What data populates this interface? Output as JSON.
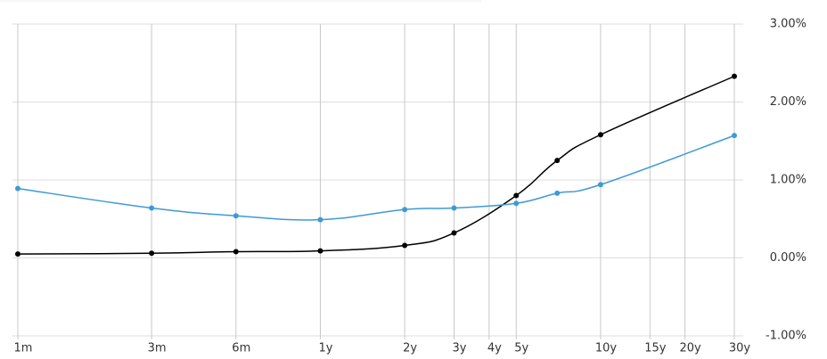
{
  "chart_data": {
    "type": "line",
    "xscale": "log",
    "x": [
      0.0833,
      0.25,
      0.5,
      1,
      2,
      3,
      5,
      7,
      10,
      30
    ],
    "series": [
      {
        "color": "#000000",
        "values": [
          0.05,
          0.06,
          0.08,
          0.09,
          0.16,
          0.32,
          0.8,
          1.25,
          1.58,
          2.33
        ]
      },
      {
        "color": "#3d9ad6",
        "values": [
          0.89,
          0.64,
          0.54,
          0.49,
          0.62,
          0.64,
          0.7,
          0.83,
          0.94,
          1.57
        ]
      }
    ],
    "xlim": [
      0.0833,
      30
    ],
    "xticks": [
      {
        "value": 0.0833,
        "label": "1m"
      },
      {
        "value": 0.25,
        "label": "3m"
      },
      {
        "value": 0.5,
        "label": "6m"
      },
      {
        "value": 1,
        "label": "1y"
      },
      {
        "value": 2,
        "label": "2y"
      },
      {
        "value": 3,
        "label": "3y"
      },
      {
        "value": 4,
        "label": "4y"
      },
      {
        "value": 5,
        "label": "5y"
      },
      {
        "value": 10,
        "label": "10y"
      },
      {
        "value": 15,
        "label": "15y"
      },
      {
        "value": 20,
        "label": "20y"
      },
      {
        "value": 30,
        "label": "30y"
      }
    ],
    "ylim": [
      -1,
      3
    ],
    "yticks": [
      {
        "value": -1,
        "label": "-1.00%"
      },
      {
        "value": 0,
        "label": "0.00%"
      },
      {
        "value": 1,
        "label": "1.00%"
      },
      {
        "value": 2,
        "label": "2.00%"
      },
      {
        "value": 3,
        "label": "3.00%"
      }
    ],
    "grid": true
  }
}
